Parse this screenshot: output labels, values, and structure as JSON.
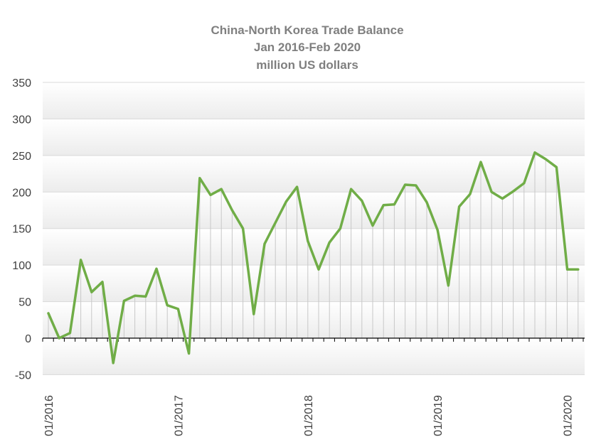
{
  "chart_data": {
    "type": "line",
    "title": [
      "China-North Korea Trade Balance",
      "Jan 2016-Feb 2020",
      "million US dollars"
    ],
    "xlabel": "",
    "ylabel": "",
    "ylim": [
      -50,
      350
    ],
    "y_ticks": [
      -50,
      0,
      50,
      100,
      150,
      200,
      250,
      300,
      350
    ],
    "x_tick_labels": [
      "01/2016",
      "01/2017",
      "01/2018",
      "01/2019",
      "01/2020"
    ],
    "grid": true,
    "legend": "none",
    "colors": {
      "line": "#70ad47",
      "dropline": "#c8c8c8",
      "grid": "#d9d9d9",
      "axis": "#000000",
      "band_top": "#ffffff",
      "band_bottom": "#ececec"
    },
    "x": [
      "2016-01",
      "2016-02",
      "2016-03",
      "2016-04",
      "2016-05",
      "2016-06",
      "2016-07",
      "2016-08",
      "2016-09",
      "2016-10",
      "2016-11",
      "2016-12",
      "2017-01",
      "2017-02",
      "2017-03",
      "2017-04",
      "2017-05",
      "2017-06",
      "2017-07",
      "2017-08",
      "2017-09",
      "2017-10",
      "2017-11",
      "2017-12",
      "2018-01",
      "2018-02",
      "2018-03",
      "2018-04",
      "2018-05",
      "2018-06",
      "2018-07",
      "2018-08",
      "2018-09",
      "2018-10",
      "2018-11",
      "2018-12",
      "2019-01",
      "2019-02",
      "2019-03",
      "2019-04",
      "2019-05",
      "2019-06",
      "2019-07",
      "2019-08",
      "2019-09",
      "2019-10",
      "2019-11",
      "2019-12",
      "2020-01",
      "2020-02"
    ],
    "series": [
      {
        "values": [
          34,
          0,
          7,
          107,
          63,
          77,
          -34,
          51,
          58,
          57,
          95,
          45,
          40,
          -21,
          219,
          196,
          204,
          175,
          150,
          33,
          129,
          158,
          187,
          207,
          133,
          94,
          131,
          150,
          204,
          188,
          154,
          182,
          183,
          210,
          209,
          186,
          148,
          72,
          180,
          197,
          241,
          200,
          191,
          201,
          212,
          254,
          245,
          234,
          94,
          94
        ]
      }
    ]
  }
}
